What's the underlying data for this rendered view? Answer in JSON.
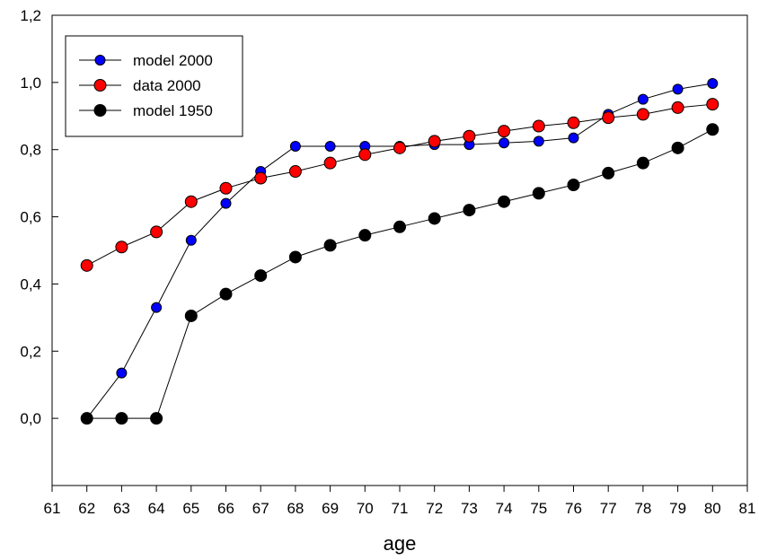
{
  "chart_data": {
    "type": "line",
    "title": "",
    "xlabel": "age",
    "ylabel": "",
    "xlim": [
      61,
      81
    ],
    "ylim": [
      -0.2,
      1.2
    ],
    "x_ticks": [
      "61",
      "62",
      "63",
      "64",
      "65",
      "66",
      "67",
      "68",
      "69",
      "70",
      "71",
      "72",
      "73",
      "74",
      "75",
      "76",
      "77",
      "78",
      "79",
      "80",
      "81"
    ],
    "y_ticks": [
      "0,0",
      "0,2",
      "0,4",
      "0,6",
      "0,8",
      "1,0",
      "1,2"
    ],
    "y_tick_values": [
      0.0,
      0.2,
      0.4,
      0.6,
      0.8,
      1.0,
      1.2
    ],
    "grid": false,
    "legend_position": "top-left",
    "x": [
      62,
      63,
      64,
      65,
      66,
      67,
      68,
      69,
      70,
      71,
      72,
      73,
      74,
      75,
      76,
      77,
      78,
      79,
      80
    ],
    "series": [
      {
        "name": "model 2000",
        "color": "#0000ff",
        "marker_size": "small",
        "values": [
          0.0,
          0.135,
          0.33,
          0.53,
          0.64,
          0.735,
          0.81,
          0.81,
          0.81,
          0.81,
          0.815,
          0.815,
          0.82,
          0.825,
          0.835,
          0.905,
          0.95,
          0.98,
          0.997
        ]
      },
      {
        "name": "data 2000",
        "color": "#ff0000",
        "marker_size": "large",
        "values": [
          0.455,
          0.51,
          0.555,
          0.645,
          0.685,
          0.715,
          0.735,
          0.76,
          0.785,
          0.805,
          0.825,
          0.84,
          0.855,
          0.87,
          0.88,
          0.895,
          0.905,
          0.925,
          0.935
        ]
      },
      {
        "name": "model 1950",
        "color": "#000000",
        "marker_size": "large",
        "values": [
          0.0,
          0.0,
          0.0,
          0.305,
          0.37,
          0.425,
          0.48,
          0.515,
          0.545,
          0.57,
          0.595,
          0.62,
          0.645,
          0.67,
          0.695,
          0.73,
          0.76,
          0.805,
          0.86
        ]
      }
    ]
  }
}
